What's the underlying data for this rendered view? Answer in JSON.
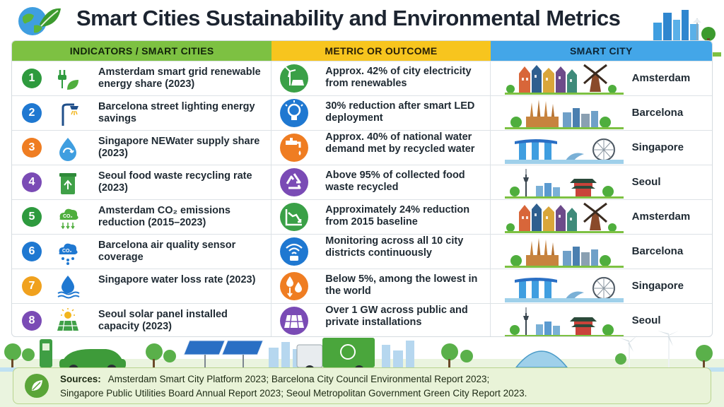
{
  "title": "Smart Cities Sustainability and Environmental Metrics",
  "headers": {
    "indicators": "INDICATORS / SMART CITIES",
    "metric": "METRIC OR OUTCOME",
    "city": "SMART CITY"
  },
  "rows": [
    {
      "num": "1",
      "indicator": "Amsterdam smart grid renewable energy share (2023)",
      "metric": "Approx. 42% of city electricity from renewables",
      "city": "Amsterdam",
      "color": "#2e9a3e",
      "icon": "plug-leaf-icon",
      "metric_icon": "wind-solar-icon",
      "metric_color": "#3aa047"
    },
    {
      "num": "2",
      "indicator": "Barcelona street lighting energy savings",
      "metric": "30% reduction after smart LED deployment",
      "city": "Barcelona",
      "color": "#1f78d1",
      "icon": "street-lamp-icon",
      "metric_icon": "led-bulb-icon",
      "metric_color": "#1f78d1"
    },
    {
      "num": "3",
      "indicator": "Singapore NEWater supply share (2023)",
      "metric": "Approx. 40% of national water demand met by recycled water",
      "city": "Singapore",
      "color": "#ef7d22",
      "icon": "water-drop-recycle-icon",
      "metric_icon": "water-tap-icon",
      "metric_color": "#ef7d22"
    },
    {
      "num": "4",
      "indicator": "Seoul food waste recycling rate (2023)",
      "metric": "Above 95% of collected food waste recycled",
      "city": "Seoul",
      "color": "#7a4bb5",
      "icon": "recycle-bin-icon",
      "metric_icon": "recycle-icon",
      "metric_color": "#7a4bb5"
    },
    {
      "num": "5",
      "indicator": "Amsterdam CO₂ emissions reduction (2015–2023)",
      "metric": "Approximately 24% reduction from 2015 baseline",
      "city": "Amsterdam",
      "color": "#2e9a3e",
      "icon": "co2-cloud-icon",
      "metric_icon": "declining-chart-icon",
      "metric_color": "#3aa047"
    },
    {
      "num": "6",
      "indicator": "Barcelona air quality sensor coverage",
      "metric": "Monitoring across all 10 city districts continuously",
      "city": "Barcelona",
      "color": "#1f78d1",
      "icon": "co2-sensor-cloud-icon",
      "metric_icon": "wifi-sensor-icon",
      "metric_color": "#1f78d1"
    },
    {
      "num": "7",
      "indicator": "Singapore water loss rate (2023)",
      "metric": "Below 5%, among the lowest in the world",
      "city": "Singapore",
      "color": "#f0a11e",
      "icon": "water-drop-waves-icon",
      "metric_icon": "falling-drops-icon",
      "metric_color": "#ef7d22"
    },
    {
      "num": "8",
      "indicator": "Seoul solar panel installed capacity (2023)",
      "metric": "Over 1 GW across public and private installations",
      "city": "Seoul",
      "color": "#7a4bb5",
      "icon": "solar-panel-sun-icon",
      "metric_icon": "solar-grid-icon",
      "metric_color": "#7a4bb5"
    }
  ],
  "sources": {
    "label": "Sources:",
    "line1": "Amsterdam Smart City Platform 2023; Barcelona City Council Environmental Report 2023;",
    "line2": "Singapore Public Utilities Board Annual Report 2023; Seoul Metropolitan Government Green City Report 2023."
  }
}
